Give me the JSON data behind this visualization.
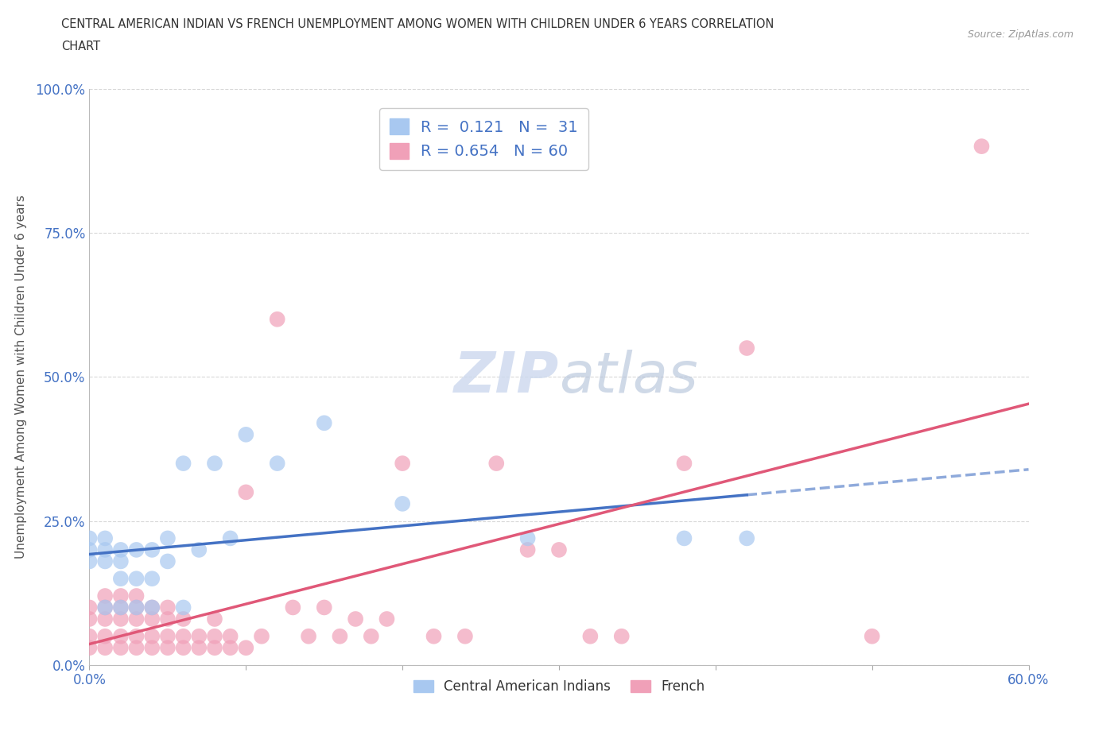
{
  "title_line1": "CENTRAL AMERICAN INDIAN VS FRENCH UNEMPLOYMENT AMONG WOMEN WITH CHILDREN UNDER 6 YEARS CORRELATION",
  "title_line2": "CHART",
  "source_text": "Source: ZipAtlas.com",
  "ylabel": "Unemployment Among Women with Children Under 6 years",
  "xmin": 0.0,
  "xmax": 0.6,
  "ymin": 0.0,
  "ymax": 1.0,
  "yticks": [
    0.0,
    0.25,
    0.5,
    0.75,
    1.0
  ],
  "ytick_labels": [
    "0.0%",
    "25.0%",
    "50.0%",
    "75.0%",
    "100.0%"
  ],
  "xticks": [
    0.0,
    0.1,
    0.2,
    0.3,
    0.4,
    0.5,
    0.6
  ],
  "xtick_labels": [
    "0.0%",
    "",
    "",
    "",
    "",
    "",
    "60.0%"
  ],
  "blue_color": "#a8c8f0",
  "pink_color": "#f0a0b8",
  "blue_line_color": "#4472c4",
  "pink_line_color": "#e05878",
  "tick_color": "#4472c4",
  "watermark_color": "#ccd8ee",
  "legend_R_blue": "0.121",
  "legend_N_blue": "31",
  "legend_R_pink": "0.654",
  "legend_N_pink": "60",
  "blue_scatter_x": [
    0.0,
    0.0,
    0.0,
    0.01,
    0.01,
    0.01,
    0.01,
    0.02,
    0.02,
    0.02,
    0.02,
    0.03,
    0.03,
    0.03,
    0.04,
    0.04,
    0.04,
    0.05,
    0.05,
    0.06,
    0.06,
    0.07,
    0.08,
    0.09,
    0.1,
    0.12,
    0.15,
    0.2,
    0.28,
    0.38,
    0.42
  ],
  "blue_scatter_y": [
    0.18,
    0.2,
    0.22,
    0.1,
    0.18,
    0.2,
    0.22,
    0.1,
    0.15,
    0.18,
    0.2,
    0.1,
    0.15,
    0.2,
    0.1,
    0.15,
    0.2,
    0.18,
    0.22,
    0.1,
    0.35,
    0.2,
    0.35,
    0.22,
    0.4,
    0.35,
    0.42,
    0.28,
    0.22,
    0.22,
    0.22
  ],
  "pink_scatter_x": [
    0.0,
    0.0,
    0.0,
    0.0,
    0.01,
    0.01,
    0.01,
    0.01,
    0.01,
    0.02,
    0.02,
    0.02,
    0.02,
    0.02,
    0.03,
    0.03,
    0.03,
    0.03,
    0.03,
    0.04,
    0.04,
    0.04,
    0.04,
    0.05,
    0.05,
    0.05,
    0.05,
    0.06,
    0.06,
    0.06,
    0.07,
    0.07,
    0.08,
    0.08,
    0.08,
    0.09,
    0.09,
    0.1,
    0.1,
    0.11,
    0.12,
    0.13,
    0.14,
    0.15,
    0.16,
    0.17,
    0.18,
    0.19,
    0.2,
    0.22,
    0.24,
    0.26,
    0.28,
    0.3,
    0.32,
    0.34,
    0.38,
    0.42,
    0.5,
    0.57
  ],
  "pink_scatter_y": [
    0.03,
    0.05,
    0.08,
    0.1,
    0.03,
    0.05,
    0.08,
    0.1,
    0.12,
    0.03,
    0.05,
    0.08,
    0.1,
    0.12,
    0.03,
    0.05,
    0.08,
    0.1,
    0.12,
    0.03,
    0.05,
    0.08,
    0.1,
    0.03,
    0.05,
    0.08,
    0.1,
    0.03,
    0.05,
    0.08,
    0.03,
    0.05,
    0.03,
    0.05,
    0.08,
    0.03,
    0.05,
    0.03,
    0.3,
    0.05,
    0.6,
    0.1,
    0.05,
    0.1,
    0.05,
    0.08,
    0.05,
    0.08,
    0.35,
    0.05,
    0.05,
    0.35,
    0.2,
    0.2,
    0.05,
    0.05,
    0.35,
    0.55,
    0.05,
    0.9
  ],
  "background_color": "#ffffff",
  "grid_color": "#d8d8d8"
}
